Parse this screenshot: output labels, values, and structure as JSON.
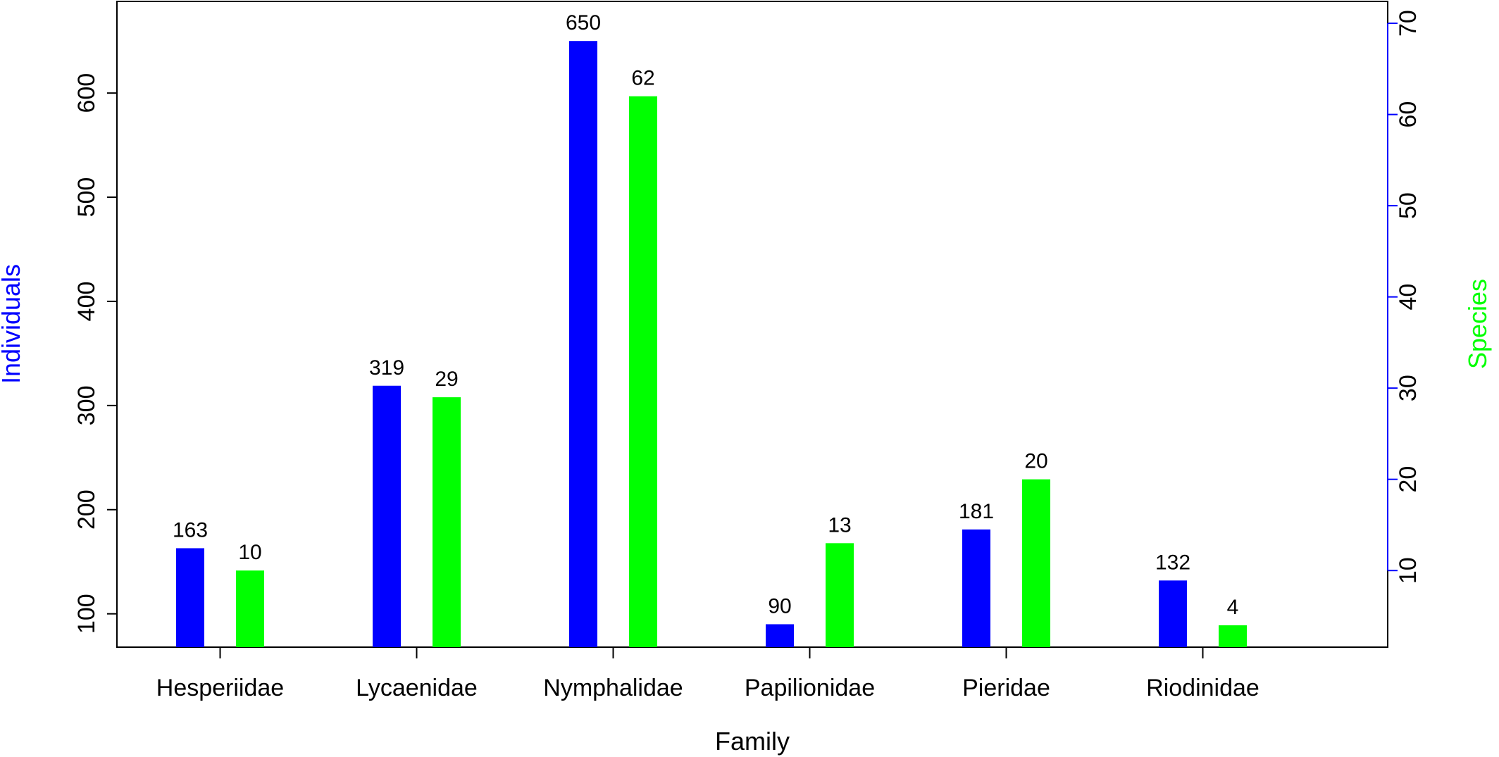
{
  "chart_data": {
    "type": "bar",
    "xlabel": "Family",
    "categories": [
      "Hesperiidae",
      "Lycaenidae",
      "Nymphalidae",
      "Papilionidae",
      "Pieridae",
      "Riodinidae"
    ],
    "left_axis": {
      "label": "Individuals",
      "label_color": "#0000ff",
      "ylim": [
        68,
        688
      ],
      "ticks": [
        100,
        200,
        300,
        400,
        500,
        600
      ]
    },
    "right_axis": {
      "label": "Species",
      "label_color": "#00ff00",
      "axis_color": "#0000ff",
      "ylim": [
        1.6,
        72.4
      ],
      "ticks": [
        10,
        20,
        30,
        40,
        50,
        60,
        70
      ]
    },
    "series": [
      {
        "name": "Individuals",
        "axis": "left",
        "color": "#0000ff",
        "values": [
          163,
          319,
          650,
          90,
          181,
          132
        ]
      },
      {
        "name": "Species",
        "axis": "right",
        "color": "#00ff00",
        "values": [
          10,
          29,
          62,
          13,
          20,
          4
        ]
      }
    ],
    "grid": false,
    "legend": "none"
  }
}
